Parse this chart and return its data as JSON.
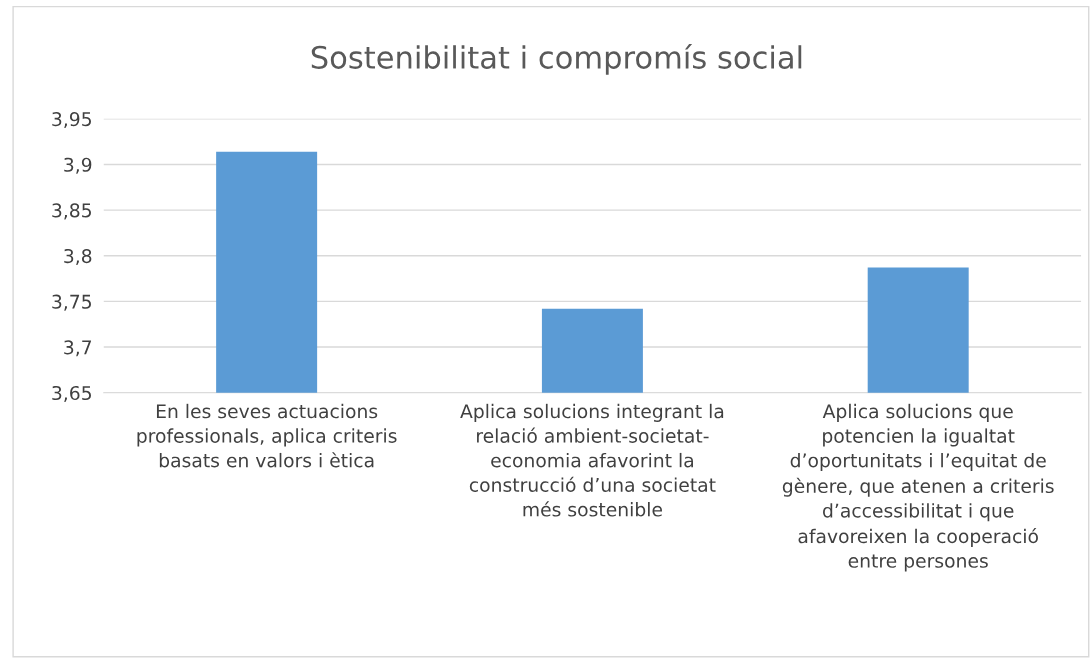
{
  "chart_data": {
    "type": "bar",
    "title": "Sostenibilitat i compromís social",
    "categories": [
      "En les seves actuacions\nprofessionals, aplica criteris\nbasats en valors i ètica",
      "Aplica solucions integrant la\nrelació ambient-societat-\neconomia afavorint la\nconstrucció d’una societat\nmés sostenible",
      "Aplica solucions que\npotencien la igualtat\nd’oportunitats i l’equitat de\ngènere, que atenen a criteris\nd’accessibilitat i que\nafavoreixen la cooperació\nentre persones"
    ],
    "values": [
      3.914,
      3.742,
      3.787
    ],
    "color": "#5b9bd5",
    "ylim": [
      3.65,
      3.95
    ],
    "yticks": [
      {
        "value": 3.65,
        "label": "3,65"
      },
      {
        "value": 3.7,
        "label": "3,7"
      },
      {
        "value": 3.75,
        "label": "3,75"
      },
      {
        "value": 3.8,
        "label": "3,8"
      },
      {
        "value": 3.85,
        "label": "3,85"
      },
      {
        "value": 3.9,
        "label": "3,9"
      },
      {
        "value": 3.95,
        "label": "3,95"
      }
    ],
    "grid": "y"
  }
}
